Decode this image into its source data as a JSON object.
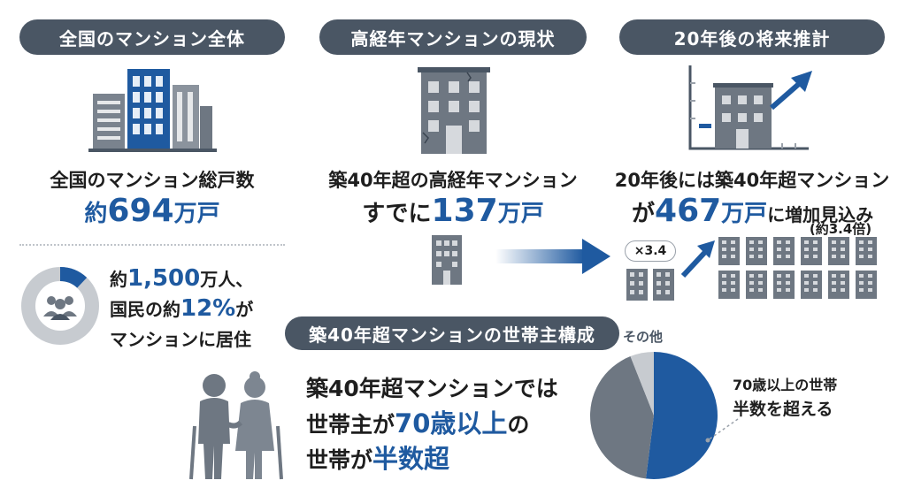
{
  "colors": {
    "pill_bg": "#4a5664",
    "accent_blue": "#1f5aa0",
    "gray_building": "#6e7782",
    "light_gray": "#c7cbd0",
    "text": "#1e1e1e"
  },
  "section1": {
    "pill": "全国のマンション全体",
    "caption": "全国のマンション総戸数",
    "value_prefix": "約",
    "value_number": "694",
    "value_unit": "万戸",
    "icon": "office-buildings-icon"
  },
  "section2": {
    "pill": "高経年マンションの現状",
    "caption": "築40年超の高経年マンション",
    "value_prefix": "すでに",
    "value_number": "137",
    "value_unit": "万戸",
    "icon": "old-building-icon"
  },
  "section3": {
    "pill": "20年後の将来推計",
    "caption": "20年後には築40年超マンション",
    "value_prefix": "が",
    "value_number": "467",
    "value_unit": "万戸",
    "value_suffix": "に増加見込み",
    "note": "(約3.4倍)",
    "multiplier": "×3.4",
    "icon": "building-growth-chart-icon"
  },
  "population": {
    "line1_prefix": "約",
    "line1_number": "1,500",
    "line1_suffix": "万人、",
    "line2_prefix": "国民の約",
    "line2_number": "12%",
    "line2_suffix": "が",
    "line3": "マンションに居住",
    "share_percent": 12
  },
  "household": {
    "pill": "築40年超マンションの世帯主構成",
    "line1": "築40年超マンションでは",
    "line2_prefix": "世帯主が",
    "line2_emph": "70歳以上",
    "line2_suffix": "の",
    "line3_prefix": "世帯が",
    "line3_emph": "半数超",
    "pie_other_label": "その他",
    "pie_callout_line1": "70歳以上の世帯",
    "pie_callout_line2": "半数を超える",
    "pie_shares": {
      "age70_plus": 0.52,
      "under70": 0.42,
      "other": 0.06
    }
  }
}
